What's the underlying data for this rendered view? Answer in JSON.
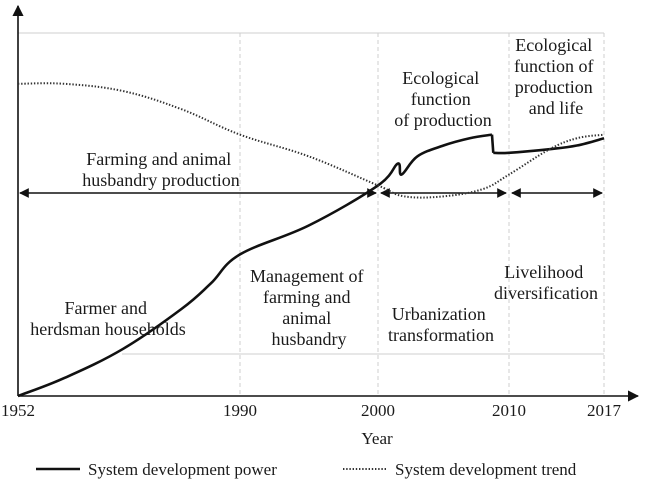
{
  "chart_data": {
    "type": "line",
    "xlabel": "Year",
    "ylabel": "",
    "x_ticks": [
      "1952",
      "1990",
      "2000",
      "2010",
      "2017"
    ],
    "series": [
      {
        "name": "System development power",
        "style": "solid",
        "color": "#111111",
        "points": [
          [
            1952,
            0.0
          ],
          [
            1960,
            0.05
          ],
          [
            1970,
            0.13
          ],
          [
            1980,
            0.24
          ],
          [
            1985,
            0.31
          ],
          [
            1990,
            0.39
          ],
          [
            1995,
            0.47
          ],
          [
            2000,
            0.58
          ],
          [
            2001.5,
            0.64
          ],
          [
            2001.8,
            0.61
          ],
          [
            2003,
            0.66
          ],
          [
            2005,
            0.69
          ],
          [
            2007,
            0.71
          ],
          [
            2008.7,
            0.72
          ],
          [
            2008.8,
            0.67
          ],
          [
            2010,
            0.67
          ],
          [
            2013,
            0.68
          ],
          [
            2015,
            0.69
          ],
          [
            2017,
            0.71
          ]
        ]
      },
      {
        "name": "System development trend",
        "style": "dotted",
        "color": "#333333",
        "points": [
          [
            1952,
            0.86
          ],
          [
            1960,
            0.86
          ],
          [
            1970,
            0.84
          ],
          [
            1980,
            0.79
          ],
          [
            1990,
            0.72
          ],
          [
            1995,
            0.66
          ],
          [
            2000,
            0.58
          ],
          [
            2002,
            0.55
          ],
          [
            2005,
            0.55
          ],
          [
            2008,
            0.57
          ],
          [
            2010,
            0.61
          ],
          [
            2013,
            0.68
          ],
          [
            2015,
            0.71
          ],
          [
            2017,
            0.72
          ]
        ]
      }
    ],
    "legend_position": "bottom"
  },
  "annotations": {
    "farming_production": [
      "Farming and animal",
      "husbandry production"
    ],
    "ecological_production": [
      "Ecological",
      "function",
      "of production"
    ],
    "ecological_life": [
      "Ecological",
      "function of",
      "production",
      "and life"
    ],
    "farmer_households": [
      "Farmer and",
      "herdsman households"
    ],
    "management": [
      "Management of",
      "farming and",
      "animal",
      "husbandry"
    ],
    "urbanization": [
      "Urbanization",
      "transformation"
    ],
    "livelihood": [
      "Livelihood",
      "diversification"
    ]
  }
}
